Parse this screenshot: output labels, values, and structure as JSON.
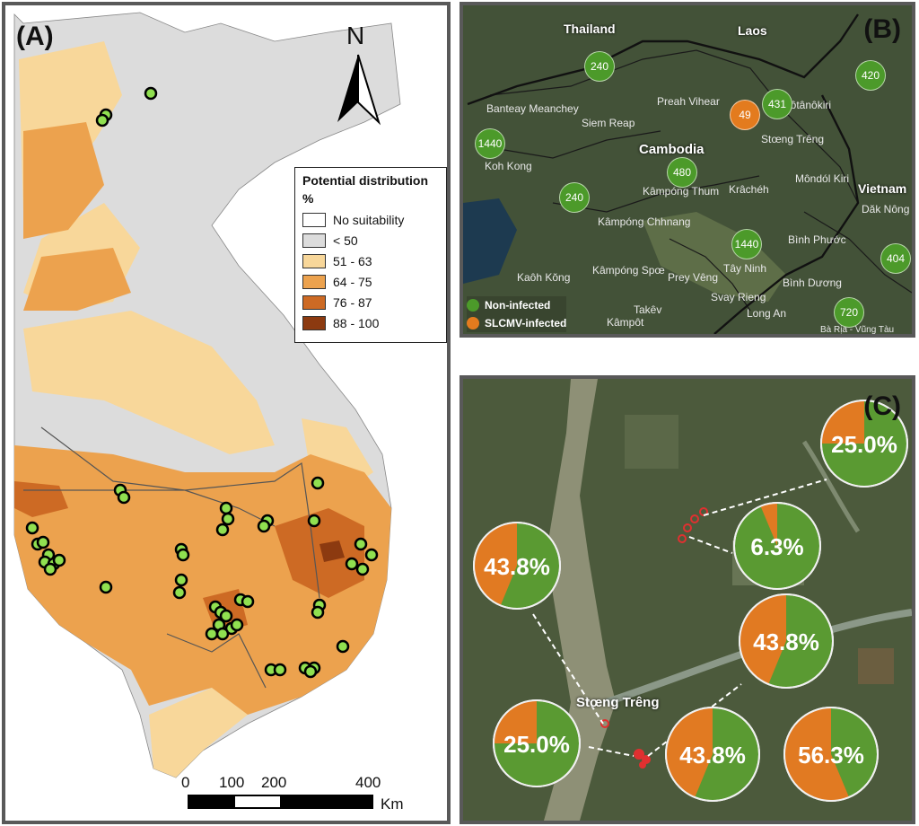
{
  "panel_a": {
    "letter": "(A)",
    "north_label": "N",
    "legend": {
      "title": "Potential distribution",
      "unit": "%",
      "classes": [
        {
          "label": "No suitability",
          "color": "#ffffff"
        },
        {
          "label": "< 50",
          "color": "#dcdcdc"
        },
        {
          "label": "51 - 63",
          "color": "#f8d79a"
        },
        {
          "label": "64 - 75",
          "color": "#eca24e"
        },
        {
          "label": "76 - 87",
          "color": "#cd6a24"
        },
        {
          "label": "88 - 100",
          "color": "#8c3a10"
        }
      ]
    },
    "scale": {
      "ticks": [
        "0",
        "100",
        "200",
        "400"
      ],
      "unit": "Km"
    },
    "point_color": "#90e050"
  },
  "panel_b": {
    "letter": "(B)",
    "countries": [
      "Thailand",
      "Laos",
      "Cambodia",
      "Vietnam"
    ],
    "places": [
      "Banteay Meanchey",
      "Siem Reap",
      "Preah Vihear",
      "Rôtânôkiri",
      "Stœng Trêng",
      "Kâmpóng Chhnang",
      "Kâmpóng Thum",
      "Krâchéh",
      "Môndól Kiri",
      "Dăk Nông",
      "Bình Phước",
      "Tây Ninh",
      "Bình Dương",
      "Kaôh Kŏng",
      "Kâmpóng Spœ",
      "Svay Rieng",
      "Prey Vêng",
      "Bà Rịa - Vũng Tàu",
      "Kâmpôt",
      "Takêv",
      "Long An",
      "Koh Kong"
    ],
    "markers": [
      {
        "value": "240",
        "status": "non"
      },
      {
        "value": "431",
        "status": "non"
      },
      {
        "value": "49",
        "status": "inf"
      },
      {
        "value": "420",
        "status": "non"
      },
      {
        "value": "1440",
        "status": "non"
      },
      {
        "value": "480",
        "status": "non"
      },
      {
        "value": "240",
        "status": "non"
      },
      {
        "value": "1440",
        "status": "non"
      },
      {
        "value": "404",
        "status": "non"
      },
      {
        "value": "720",
        "status": "non"
      }
    ],
    "legend": [
      {
        "label": "Non-infected",
        "color": "#4c9a2a"
      },
      {
        "label": "SLCMV-infected",
        "color": "#e37b1e"
      }
    ]
  },
  "panel_c": {
    "letter": "(C)",
    "town_label": "Stœng Trêng",
    "pies": [
      {
        "label": "25.0%",
        "fraction": 0.25
      },
      {
        "label": "6.3%",
        "fraction": 0.063
      },
      {
        "label": "43.8%",
        "fraction": 0.438
      },
      {
        "label": "43.8%",
        "fraction": 0.438
      },
      {
        "label": "25.0%",
        "fraction": 0.25
      },
      {
        "label": "43.8%",
        "fraction": 0.438
      },
      {
        "label": "56.3%",
        "fraction": 0.563
      }
    ],
    "colors": {
      "infected": "#e17a22",
      "healthy": "#5a9a32"
    }
  }
}
